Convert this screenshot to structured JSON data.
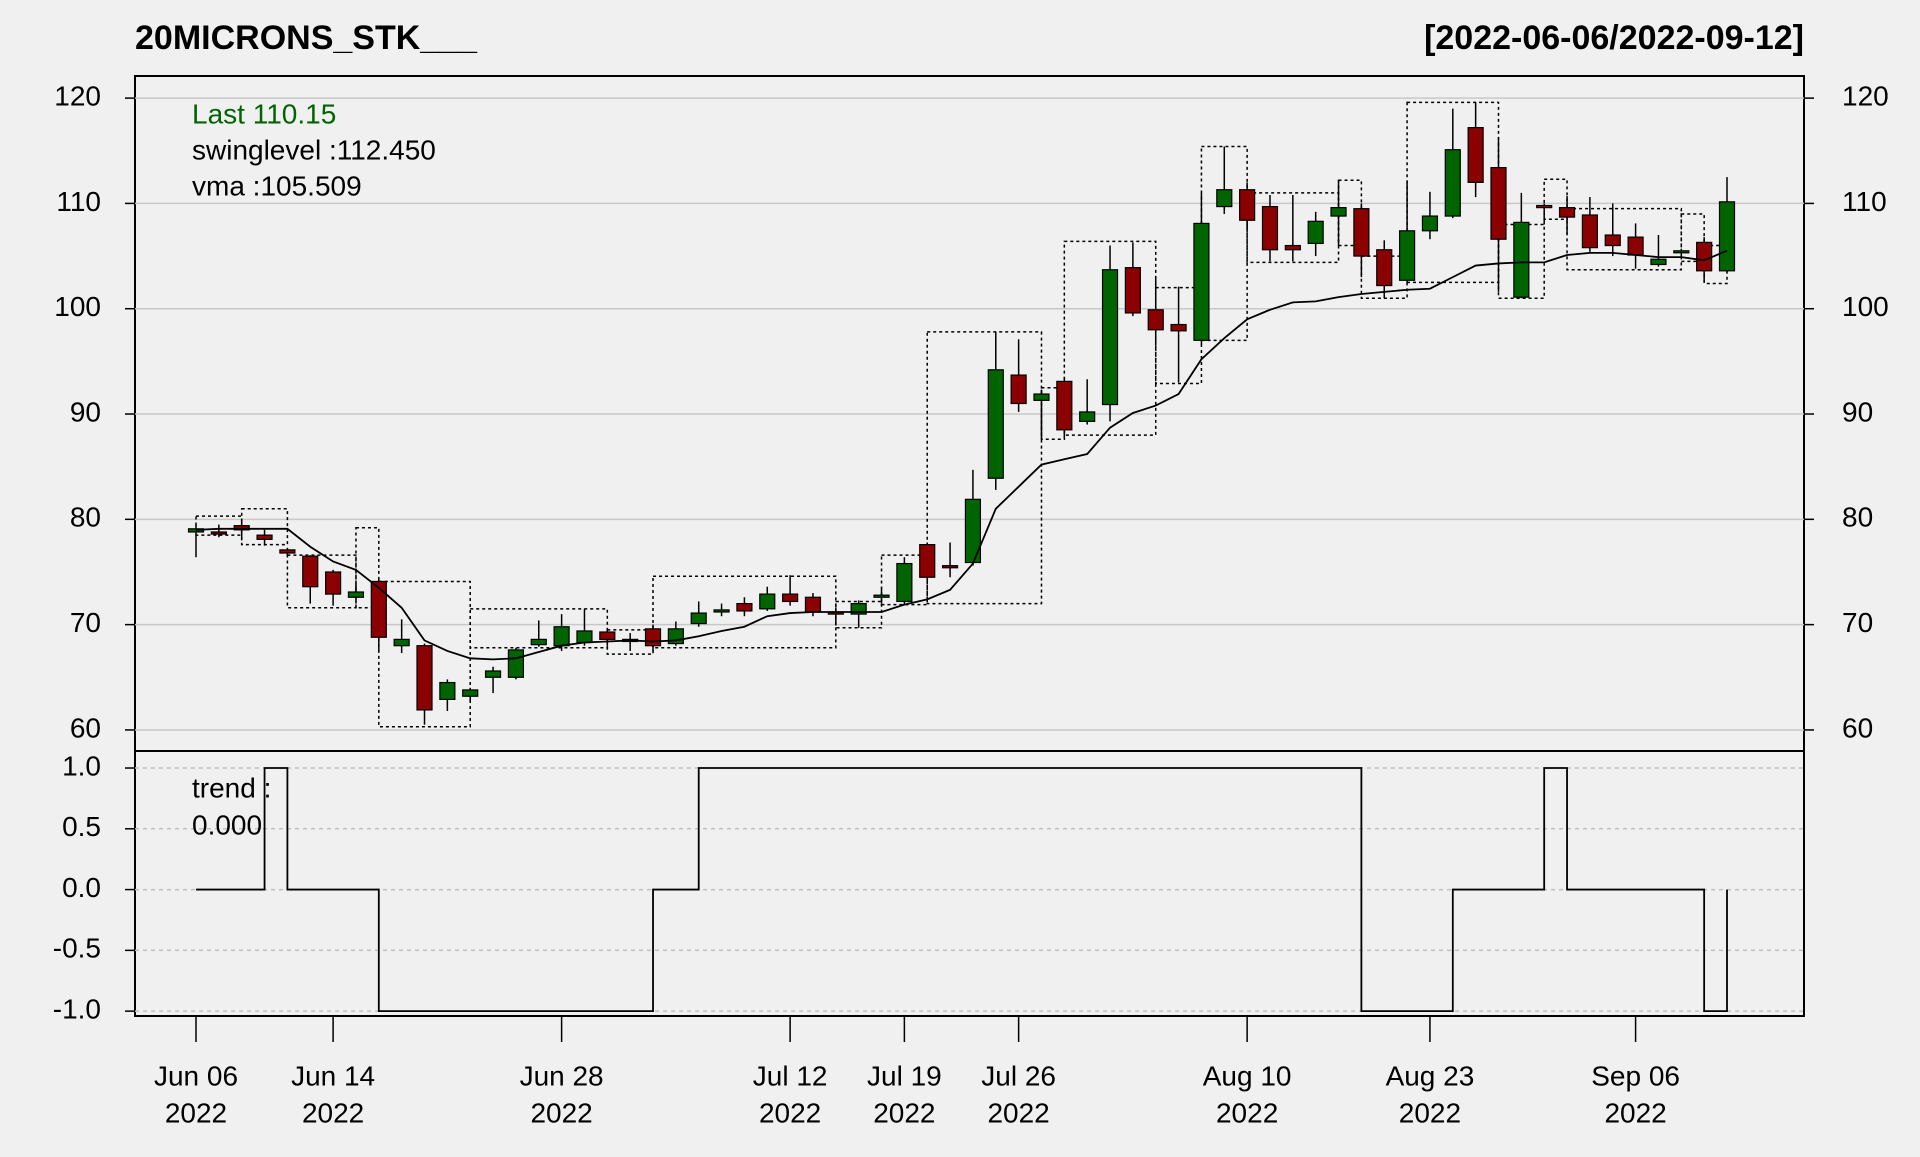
{
  "chart_data": [
    {
      "type": "candlestick",
      "title": "20MICRONS_STK___",
      "subtitle": "[2022-06-06/2022-09-12]",
      "x": [
        "2022-06-06",
        "2022-06-07",
        "2022-06-08",
        "2022-06-09",
        "2022-06-10",
        "2022-06-13",
        "2022-06-14",
        "2022-06-15",
        "2022-06-16",
        "2022-06-17",
        "2022-06-20",
        "2022-06-21",
        "2022-06-22",
        "2022-06-23",
        "2022-06-24",
        "2022-06-27",
        "2022-06-28",
        "2022-06-29",
        "2022-06-30",
        "2022-07-01",
        "2022-07-04",
        "2022-07-05",
        "2022-07-06",
        "2022-07-07",
        "2022-07-08",
        "2022-07-11",
        "2022-07-12",
        "2022-07-13",
        "2022-07-14",
        "2022-07-15",
        "2022-07-18",
        "2022-07-19",
        "2022-07-20",
        "2022-07-21",
        "2022-07-22",
        "2022-07-25",
        "2022-07-26",
        "2022-07-27",
        "2022-07-28",
        "2022-07-29",
        "2022-08-01",
        "2022-08-02",
        "2022-08-03",
        "2022-08-04",
        "2022-08-05",
        "2022-08-08",
        "2022-08-10",
        "2022-08-11",
        "2022-08-12",
        "2022-08-16",
        "2022-08-17",
        "2022-08-18",
        "2022-08-19",
        "2022-08-22",
        "2022-08-23",
        "2022-08-24",
        "2022-08-25",
        "2022-08-26",
        "2022-08-29",
        "2022-08-30",
        "2022-09-01",
        "2022-09-02",
        "2022-09-05",
        "2022-09-06",
        "2022-09-07",
        "2022-09-08",
        "2022-09-09",
        "2022-09-12"
      ],
      "open": [
        78.8,
        78.8,
        79.4,
        78.5,
        77.1,
        76.5,
        75.0,
        72.6,
        74.1,
        68.0,
        68.0,
        62.9,
        63.2,
        65.0,
        65.0,
        68.1,
        68.0,
        68.3,
        69.3,
        68.6,
        69.6,
        68.2,
        70.1,
        71.2,
        72.0,
        71.5,
        72.9,
        72.6,
        71.2,
        71.0,
        72.6,
        72.2,
        77.6,
        75.6,
        75.9,
        83.9,
        93.7,
        91.3,
        93.1,
        89.3,
        90.9,
        103.9,
        99.9,
        98.5,
        97.0,
        109.7,
        111.3,
        109.7,
        106.0,
        106.2,
        108.8,
        109.5,
        105.6,
        102.7,
        107.4,
        108.8,
        117.2,
        113.4,
        101.1,
        109.8,
        109.6,
        108.9,
        107.0,
        106.8,
        104.2,
        105.4,
        106.3,
        103.6
      ],
      "high": [
        79.5,
        79.5,
        80.0,
        79.0,
        77.3,
        76.6,
        75.2,
        73.8,
        74.3,
        70.5,
        68.2,
        64.8,
        64.0,
        66.0,
        67.8,
        70.4,
        71.0,
        71.5,
        69.6,
        69.2,
        70.0,
        70.3,
        72.2,
        72.0,
        72.6,
        73.6,
        74.7,
        73.0,
        71.6,
        72.3,
        73.5,
        76.4,
        77.8,
        77.8,
        84.7,
        97.8,
        97.1,
        92.3,
        93.5,
        93.3,
        106.0,
        106.3,
        102.9,
        102.1,
        111.0,
        115.4,
        112.0,
        110.8,
        110.8,
        109.2,
        112.2,
        110.0,
        106.5,
        112.1,
        111.1,
        119.0,
        119.6,
        116.3,
        111.0,
        110.0,
        110.7,
        110.6,
        110.0,
        108.1,
        107.0,
        105.7,
        106.8,
        112.5
      ],
      "low": [
        76.4,
        78.3,
        78.0,
        77.5,
        76.5,
        72.0,
        71.8,
        72.4,
        67.5,
        67.3,
        60.5,
        61.8,
        62.8,
        63.5,
        64.8,
        67.9,
        67.5,
        68.0,
        68.0,
        67.5,
        67.5,
        68.0,
        69.8,
        70.8,
        70.8,
        71.3,
        71.8,
        70.8,
        70.0,
        69.7,
        72.0,
        71.9,
        74.3,
        74.5,
        75.6,
        82.8,
        90.2,
        87.6,
        87.8,
        89.0,
        89.3,
        99.3,
        96.5,
        93.0,
        96.6,
        109.0,
        107.5,
        104.5,
        104.5,
        105.0,
        106.0,
        103.0,
        101.0,
        102.5,
        106.6,
        108.6,
        110.6,
        101.6,
        101.0,
        108.0,
        107.1,
        105.4,
        105.0,
        103.8,
        104.0,
        105.0,
        102.6,
        103.5
      ],
      "close": [
        79.1,
        78.6,
        79.0,
        78.1,
        76.8,
        73.6,
        72.9,
        73.1,
        68.8,
        68.6,
        61.9,
        64.5,
        63.8,
        65.6,
        67.6,
        68.6,
        69.8,
        69.4,
        68.6,
        68.4,
        68.0,
        69.6,
        71.1,
        71.4,
        71.3,
        72.9,
        72.2,
        71.2,
        71.0,
        72.0,
        72.8,
        75.8,
        74.5,
        75.4,
        81.9,
        94.2,
        91.0,
        91.9,
        88.5,
        90.2,
        103.7,
        99.6,
        98.0,
        97.9,
        108.1,
        111.3,
        108.4,
        105.6,
        105.6,
        108.3,
        109.6,
        105.0,
        102.2,
        107.4,
        108.8,
        115.1,
        112.0,
        106.6,
        108.2,
        109.6,
        108.7,
        105.8,
        106.0,
        105.1,
        104.7,
        105.5,
        103.6,
        110.15
      ],
      "up_color": "#006400",
      "down_color": "#8b0000",
      "lines": [
        {
          "color": "#000000",
          "values": [
            79.0,
            79.1,
            79.1,
            79.1,
            79.1,
            77.4,
            76.0,
            75.2,
            73.5,
            71.6,
            68.5,
            67.5,
            66.8,
            66.7,
            66.8,
            67.4,
            68.0,
            68.3,
            68.4,
            68.5,
            68.4,
            68.5,
            68.9,
            69.4,
            69.8,
            70.8,
            71.1,
            71.2,
            71.2,
            71.2,
            71.2,
            71.9,
            72.4,
            73.3,
            75.8,
            81.0,
            83.1,
            85.2,
            85.7,
            86.2,
            88.7,
            90.1,
            90.8,
            91.9,
            95.2,
            97.2,
            99.0,
            99.9,
            100.6,
            100.7,
            101.1,
            101.4,
            101.6,
            101.8,
            101.9,
            103.0,
            104.1,
            104.3,
            104.4,
            104.4,
            105.1,
            105.3,
            105.3,
            105.1,
            104.9,
            104.9,
            104.6,
            105.509
          ]
        }
      ],
      "swing_boxes": [
        {
          "start": "2022-06-06",
          "end": "2022-06-08",
          "high": 80.3,
          "low": 78.5
        },
        {
          "start": "2022-06-08",
          "end": "2022-06-10",
          "high": 81.0,
          "low": 77.6
        },
        {
          "start": "2022-06-10",
          "end": "2022-06-15",
          "high": 76.6,
          "low": 71.6
        },
        {
          "start": "2022-06-15",
          "end": "2022-06-16",
          "high": 79.2,
          "low": 71.6
        },
        {
          "start": "2022-06-16",
          "end": "2022-06-22",
          "high": 74.1,
          "low": 60.3
        },
        {
          "start": "2022-06-22",
          "end": "2022-06-30",
          "high": 71.5,
          "low": 67.8
        },
        {
          "start": "2022-06-30",
          "end": "2022-07-04",
          "high": 69.5,
          "low": 67.2
        },
        {
          "start": "2022-07-04",
          "end": "2022-07-14",
          "high": 74.6,
          "low": 67.8
        },
        {
          "start": "2022-07-14",
          "end": "2022-07-18",
          "high": 72.2,
          "low": 69.7
        },
        {
          "start": "2022-07-18",
          "end": "2022-07-20",
          "high": 76.6,
          "low": 71.9
        },
        {
          "start": "2022-07-20",
          "end": "2022-07-27",
          "high": 97.8,
          "low": 72.0
        },
        {
          "start": "2022-07-27",
          "end": "2022-07-28",
          "high": 92.5,
          "low": 87.6
        },
        {
          "start": "2022-07-28",
          "end": "2022-08-03",
          "high": 106.4,
          "low": 88.0
        },
        {
          "start": "2022-08-03",
          "end": "2022-08-05",
          "high": 102.0,
          "low": 92.9
        },
        {
          "start": "2022-08-05",
          "end": "2022-08-10",
          "high": 115.4,
          "low": 97.0
        },
        {
          "start": "2022-08-10",
          "end": "2022-08-17",
          "high": 111.0,
          "low": 104.4
        },
        {
          "start": "2022-08-17",
          "end": "2022-08-18",
          "high": 112.2,
          "low": 106.0
        },
        {
          "start": "2022-08-18",
          "end": "2022-08-22",
          "high": 105.0,
          "low": 101.0
        },
        {
          "start": "2022-08-22",
          "end": "2022-08-26",
          "high": 119.6,
          "low": 102.5
        },
        {
          "start": "2022-08-26",
          "end": "2022-08-30",
          "high": 108.0,
          "low": 101.0
        },
        {
          "start": "2022-08-30",
          "end": "2022-09-01",
          "high": 112.3,
          "low": 108.5
        },
        {
          "start": "2022-09-01",
          "end": "2022-09-08",
          "high": 109.5,
          "low": 103.7
        },
        {
          "start": "2022-09-08",
          "end": "2022-09-09",
          "high": 109.0,
          "low": 104.5
        },
        {
          "start": "2022-09-09",
          "end": "2022-09-12",
          "high": 106.0,
          "low": 102.4
        }
      ],
      "annotations": [
        {
          "text": "Last 110.15",
          "color": "#006400"
        },
        {
          "text": "swinglevel :112.450",
          "color": "#000000"
        },
        {
          "text": "vma :105.509",
          "color": "#000000"
        }
      ],
      "ylim": [
        58.0,
        122.1
      ],
      "yticks": [
        60,
        70,
        80,
        90,
        100,
        110,
        120
      ],
      "grid": true,
      "xticks": [
        {
          "value": "2022-06-06",
          "label": [
            "Jun 06",
            "2022"
          ]
        },
        {
          "value": "2022-06-14",
          "label": [
            "Jun 14",
            "2022"
          ]
        },
        {
          "value": "2022-06-28",
          "label": [
            "Jun 28",
            "2022"
          ]
        },
        {
          "value": "2022-07-12",
          "label": [
            "Jul 12",
            "2022"
          ]
        },
        {
          "value": "2022-07-19",
          "label": [
            "Jul 19",
            "2022"
          ]
        },
        {
          "value": "2022-07-26",
          "label": [
            "Jul 26",
            "2022"
          ]
        },
        {
          "value": "2022-08-10",
          "label": [
            "Aug 10",
            "2022"
          ]
        },
        {
          "value": "2022-08-23",
          "label": [
            "Aug 23",
            "2022"
          ]
        },
        {
          "value": "2022-09-06",
          "label": [
            "Sep 06",
            "2022"
          ]
        }
      ]
    },
    {
      "type": "step",
      "color": "#000000",
      "values": [
        0,
        0,
        0,
        1,
        0,
        0,
        0,
        0,
        -1,
        -1,
        -1,
        -1,
        -1,
        -1,
        -1,
        -1,
        -1,
        -1,
        -1,
        -1,
        0,
        0,
        1,
        1,
        1,
        1,
        1,
        1,
        1,
        1,
        1,
        1,
        1,
        1,
        1,
        1,
        1,
        1,
        1,
        1,
        1,
        1,
        1,
        1,
        1,
        1,
        1,
        1,
        1,
        1,
        1,
        -1,
        -1,
        -1,
        -1,
        0,
        0,
        0,
        0,
        1,
        0,
        0,
        0,
        0,
        0,
        0,
        -1,
        0
      ],
      "annotations": [
        {
          "text": "trend :",
          "color": "#000000"
        },
        {
          "text": "0.000",
          "color": "#000000"
        }
      ],
      "ylim": [
        -1.04,
        1.14
      ],
      "yticks": [
        {
          "value": 1,
          "label": "1.0"
        },
        {
          "value": 0.5,
          "label": "0.5"
        },
        {
          "value": 0,
          "label": "0.0"
        },
        {
          "value": -0.5,
          "label": "-0.5"
        },
        {
          "value": -1,
          "label": "-1.0"
        }
      ],
      "grid": true
    }
  ]
}
